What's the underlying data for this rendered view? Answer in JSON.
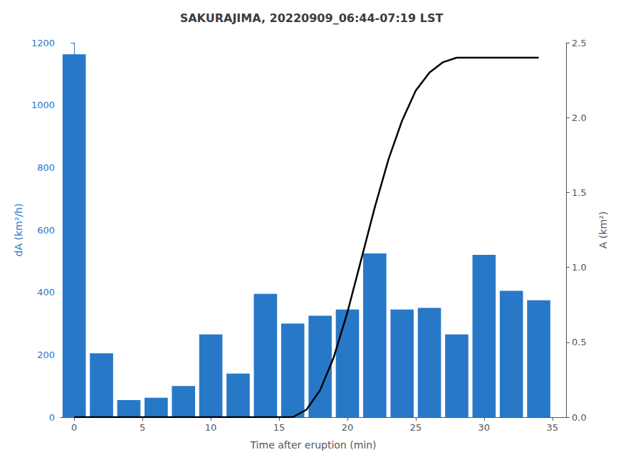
{
  "chart_data": {
    "type": "bar",
    "title": "SAKURAJIMA, 20220909_06:44-07:19 LST",
    "xlabel": "Time after eruption (min)",
    "ylabel": "dA (km²/h)",
    "y2label": "A (km²)",
    "series": [
      {
        "type": "bar",
        "color": "#2878c8",
        "x": [
          0,
          2,
          4,
          6,
          8,
          10,
          12,
          14,
          16,
          18,
          20,
          22,
          24,
          26,
          28,
          30,
          32,
          34
        ],
        "values": [
          1163,
          205,
          55,
          62,
          100,
          265,
          140,
          395,
          300,
          325,
          345,
          525,
          345,
          350,
          265,
          520,
          405,
          375
        ]
      },
      {
        "type": "line",
        "axis": "y2",
        "color": "#000000",
        "x": [
          0,
          2,
          4,
          6,
          8,
          10,
          12,
          14,
          16,
          17,
          18,
          19,
          20,
          21,
          22,
          23,
          24,
          25,
          26,
          27,
          28,
          29,
          30,
          32,
          34
        ],
        "values": [
          0,
          0,
          0,
          0,
          0,
          0,
          0,
          0,
          0,
          0.05,
          0.18,
          0.4,
          0.7,
          1.05,
          1.4,
          1.72,
          1.98,
          2.18,
          2.3,
          2.37,
          2.4,
          2.4,
          2.4,
          2.4,
          2.4
        ]
      }
    ],
    "xlim": [
      -1,
      36
    ],
    "xticks": [
      0,
      5,
      10,
      15,
      20,
      25,
      30,
      35
    ],
    "ylim": [
      0,
      1200
    ],
    "yticks": [
      0,
      200,
      400,
      600,
      800,
      1000,
      1200
    ],
    "y2lim": [
      0,
      2.5
    ],
    "y2ticks": [
      {
        "value": 0,
        "label": "0.0"
      },
      0.5,
      {
        "value": 1.0,
        "label": "1.0"
      },
      1.5,
      {
        "value": 2.0,
        "label": "2.0"
      },
      2.5
    ],
    "grid": false
  }
}
